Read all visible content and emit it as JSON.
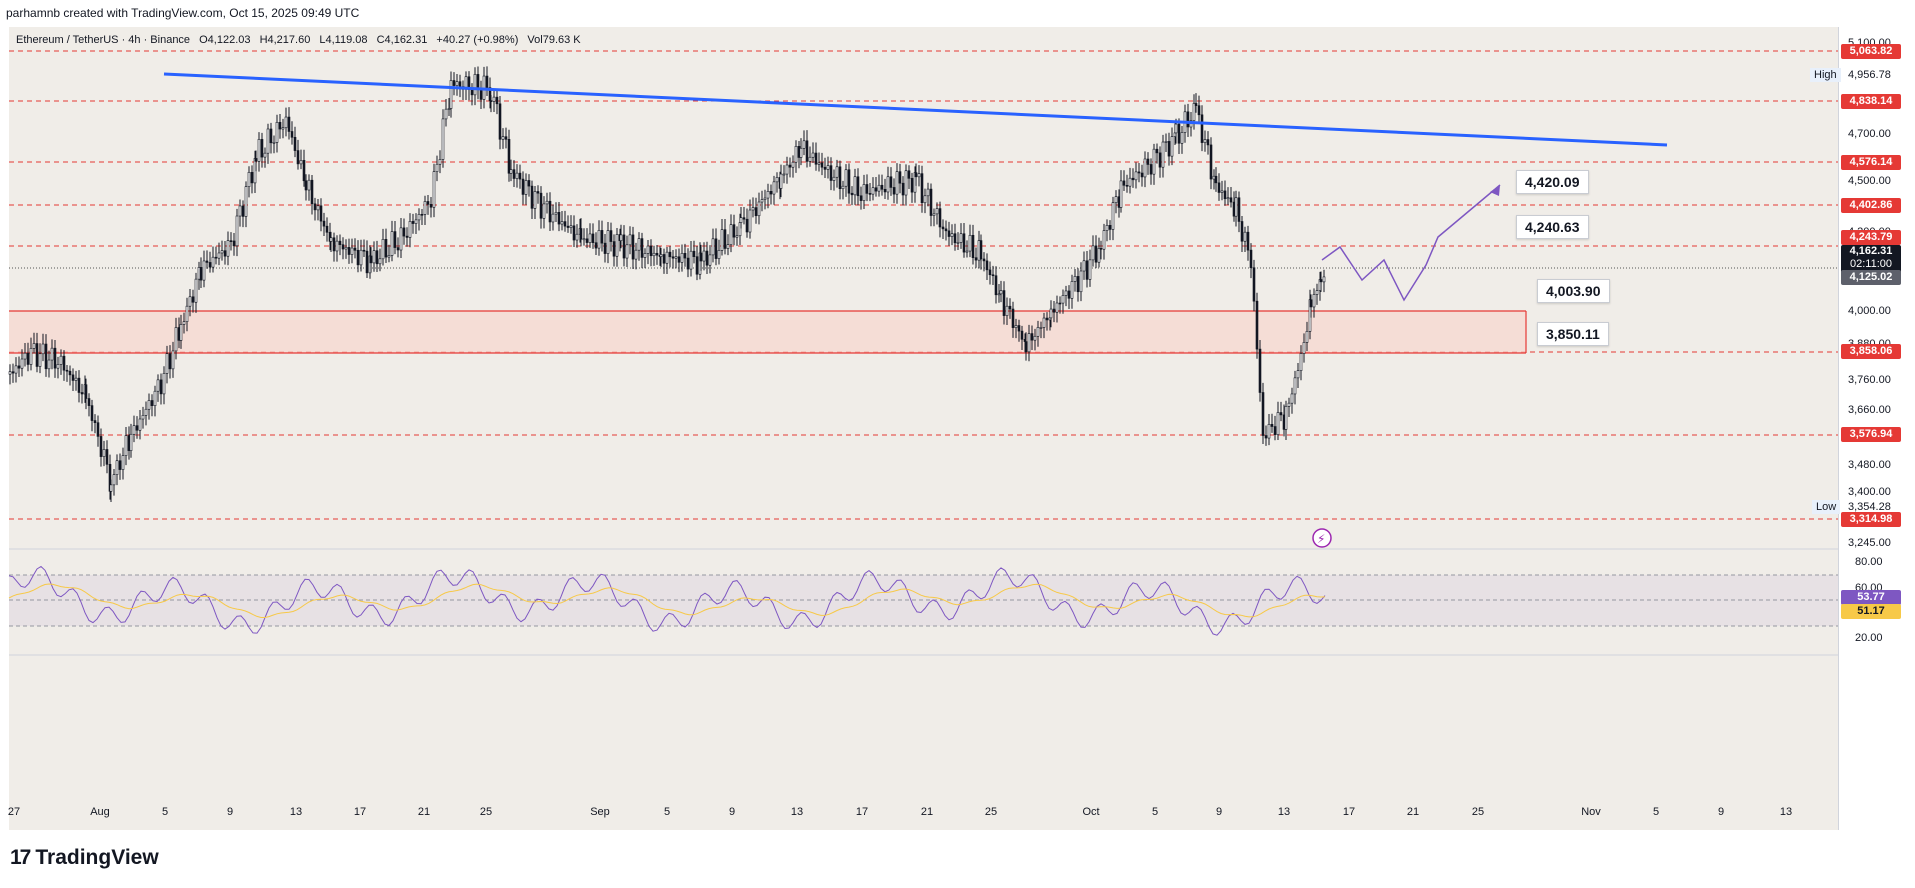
{
  "header": {
    "credit": "parhamnb created with TradingView.com, Oct 15, 2025 09:49 UTC"
  },
  "symbol": {
    "name": "Ethereum / TetherUS · 4h · Binance",
    "open": "O4,122.03",
    "high": "H4,217.60",
    "low": "L4,119.08",
    "close": "C4,162.31",
    "change": "+40.27 (+0.98%)",
    "volume": "Vol79.63 K"
  },
  "hi_lo": {
    "high_label": "High",
    "high_value": "4,956.78",
    "low_label": "Low",
    "low_value": "3,354.28"
  },
  "price_levels": [
    {
      "value": "5,063.82",
      "color": "#e53935"
    },
    {
      "value": "4,838.14",
      "color": "#e53935"
    },
    {
      "value": "4,576.14",
      "color": "#e53935"
    },
    {
      "value": "4,402.86",
      "color": "#e53935"
    },
    {
      "value": "4,243.79",
      "color": "#e53935"
    },
    {
      "value": "3,858.06",
      "color": "#e53935"
    },
    {
      "value": "3,576.94",
      "color": "#e53935"
    },
    {
      "value": "3,314.98",
      "color": "#e53935"
    }
  ],
  "current_price": {
    "value": "4,162.31",
    "countdown": "02:11:00",
    "color": "#131722"
  },
  "prev_close": {
    "value": "4,125.02",
    "color": "#5d606b"
  },
  "price_ticks": [
    "5,100.00",
    "4,700.00",
    "4,500.00",
    "4,200.00",
    "4,000.00",
    "3,880.00",
    "3,760.00",
    "3,660.00",
    "3,480.00",
    "3,400.00",
    "3,245.00"
  ],
  "callouts": [
    "4,420.09",
    "4,240.63",
    "4,003.90",
    "3,850.11"
  ],
  "rsi": {
    "ticks": [
      "80.00",
      "60.00",
      "20.00"
    ],
    "rsi_value": "53.77",
    "ma_value": "51.17",
    "rsi_color": "#7e57c2",
    "ma_color": "#f7c948"
  },
  "time_axis": [
    "27",
    "Aug",
    "5",
    "9",
    "13",
    "17",
    "21",
    "25",
    "Sep",
    "5",
    "9",
    "13",
    "17",
    "21",
    "25",
    "Oct",
    "5",
    "9",
    "13",
    "17",
    "21",
    "25",
    "Nov",
    "5",
    "9",
    "13"
  ],
  "footer": {
    "brand": "TradingView",
    "logo_glyph": "17"
  },
  "colors": {
    "trendline": "#2962ff",
    "zone_fill": "#f6d5cf",
    "zone_border": "#e53935",
    "projection": "#7e57c2",
    "candle": "#131722"
  },
  "chart_data": {
    "type": "line",
    "title": "Ethereum / TetherUS · 4h · Binance",
    "ylim": [
      3245,
      5100
    ],
    "x": [
      "27",
      "Aug",
      "5",
      "9",
      "13",
      "17",
      "21",
      "25",
      "Sep",
      "5",
      "9",
      "13",
      "17",
      "21",
      "25",
      "Oct",
      "5",
      "9",
      "13"
    ],
    "series": [
      {
        "name": "ETHUSDT",
        "values": [
          3800,
          3850,
          3450,
          3800,
          4300,
          4750,
          4450,
          4900,
          4350,
          4400,
          4300,
          4750,
          4500,
          4250,
          3900,
          4300,
          4650,
          4100,
          4162
        ]
      }
    ],
    "projection": [
      4162,
      4240,
      4150,
      3950,
      4080,
      3990,
      4420
    ],
    "support_zone": [
      3858.06,
      4003.9
    ],
    "rsi": {
      "ylim": [
        20,
        80
      ],
      "last": 53.77,
      "ma_last": 51.17
    }
  }
}
